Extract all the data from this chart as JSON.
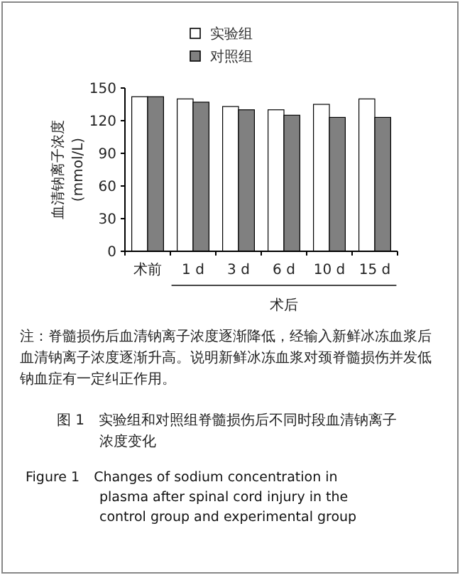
{
  "chart_data": {
    "type": "bar",
    "title": "图 1　实验组和对照组脊髓损伤后不同时段血清钠离子浓度变化",
    "subtitle": "Figure 1　Changes of sodium concentration in plasma after spinal cord injury in the control group and experimental group",
    "xlabel": "术后",
    "ylabel": "血清钠离子浓度\n(mmol/L)",
    "annotations": [
      "注：脊髓损伤后血清钠离子浓度逐渐降低，经输入新鲜冰冻血浆后血清钠离子浓度逐渐升高。说明新鲜冰冻血浆对颈脊髓损伤并发低钠血症有一定纠正作用。"
    ],
    "categories": [
      "术前",
      "1 d",
      "3 d",
      "6 d",
      "10 d",
      "15 d"
    ],
    "series": [
      {
        "name": "实验组",
        "color": "#ffffff",
        "values": [
          142,
          140,
          133,
          130,
          135,
          140
        ]
      },
      {
        "name": "对照组",
        "color": "#808080",
        "values": [
          142,
          137,
          130,
          125,
          123,
          123
        ]
      }
    ],
    "ylim": [
      0,
      150
    ],
    "yticks": [
      0,
      30,
      60,
      90,
      120,
      150
    ],
    "grid": false,
    "legend": "top"
  }
}
